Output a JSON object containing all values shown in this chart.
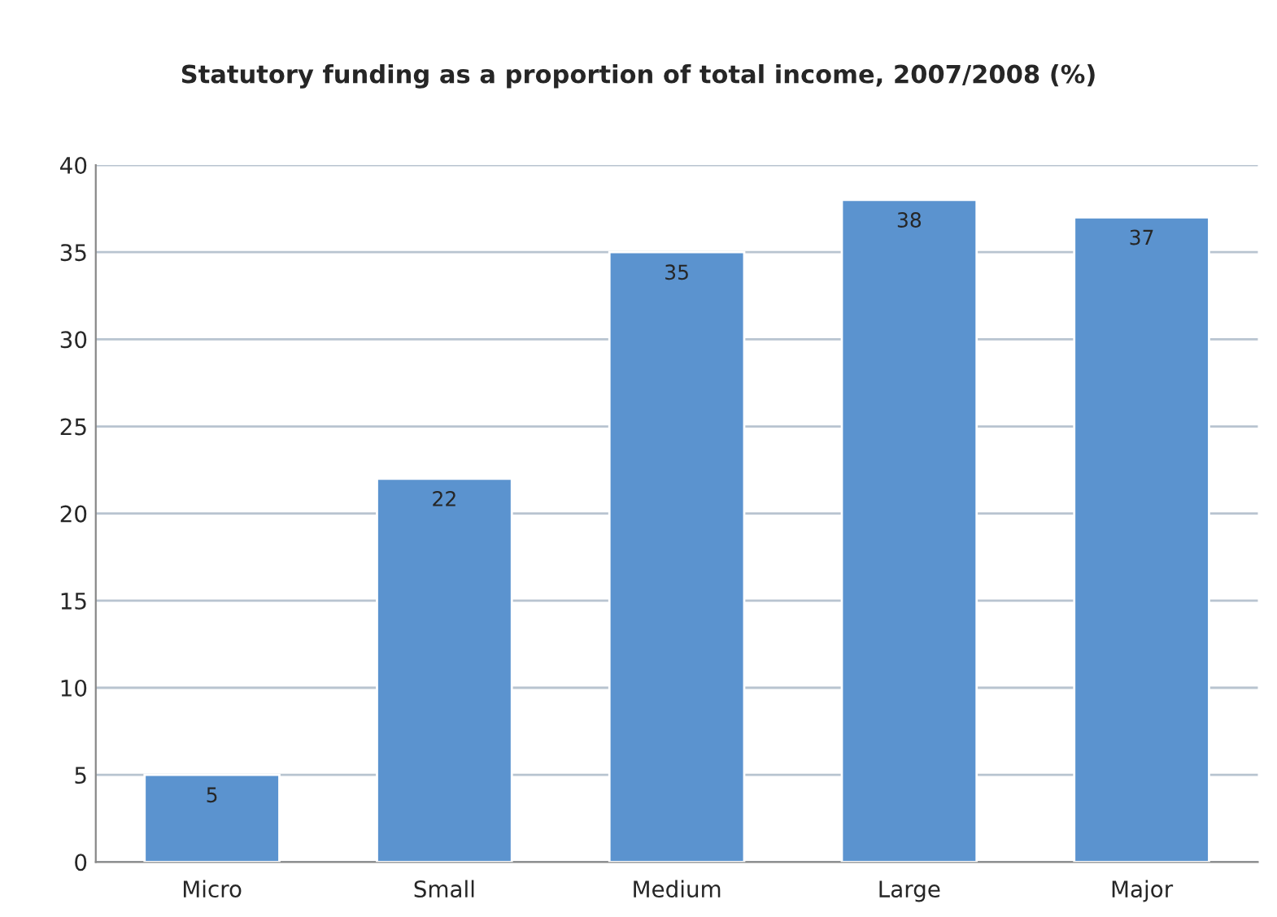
{
  "chart_data": {
    "type": "bar",
    "title": "Statutory funding as a proportion of total income, 2007/2008 (%)",
    "categories": [
      "Micro",
      "Small",
      "Medium",
      "Large",
      "Major"
    ],
    "values": [
      5,
      22,
      35,
      38,
      37
    ],
    "color": "#5b93cf",
    "ylim": [
      0,
      40
    ],
    "yticks": [
      0,
      5,
      10,
      15,
      20,
      25,
      30,
      35,
      40
    ],
    "grid": "y",
    "data_labels": true
  }
}
